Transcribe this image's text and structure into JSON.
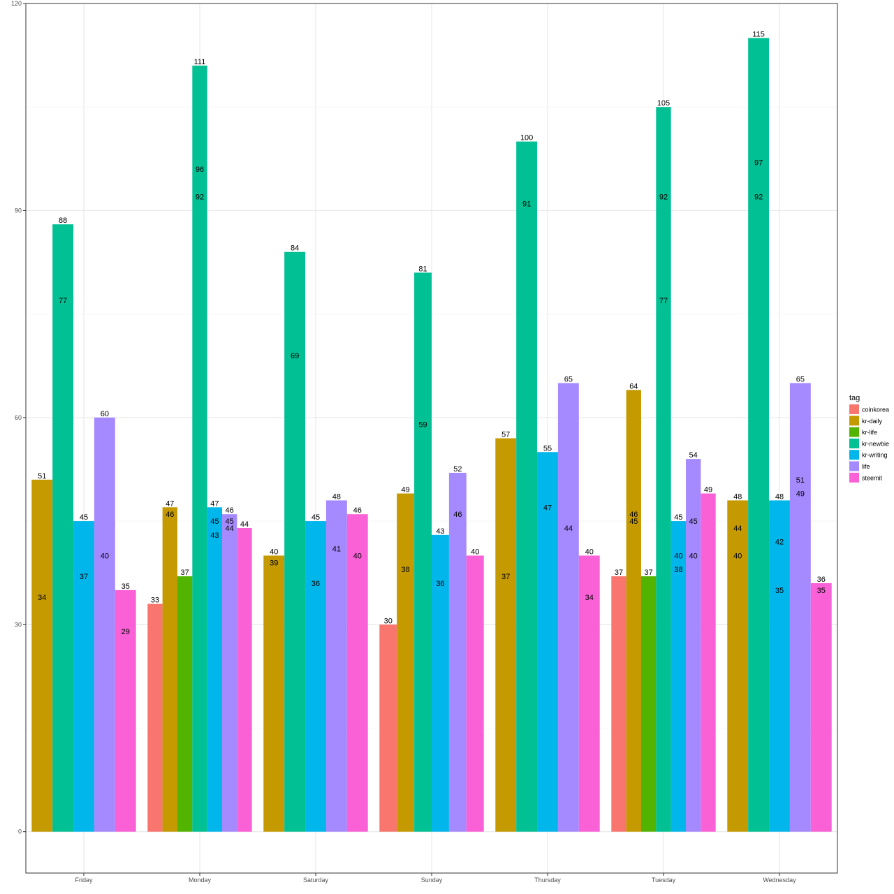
{
  "chart_data": {
    "type": "bar",
    "title": "",
    "xlabel": "",
    "ylabel": "",
    "ylim": [
      -6,
      120
    ],
    "y_ticks": [
      0,
      30,
      60,
      90,
      120
    ],
    "grid": true,
    "legend": {
      "title": "tag",
      "placement": "right",
      "entries": [
        "coinkorea",
        "kr-daily",
        "kr-life",
        "kr-newbie",
        "kr-writing",
        "life",
        "steemit"
      ]
    },
    "colors": {
      "coinkorea": "#F8766D",
      "kr-daily": "#C49A00",
      "kr-life": "#53B400",
      "kr-newbie": "#00C094",
      "kr-writing": "#00B6EB",
      "life": "#A58AFF",
      "steemit": "#FB61D7"
    },
    "categories": [
      "Friday",
      "Monday",
      "Saturday",
      "Sunday",
      "Thursday",
      "Tuesday",
      "Wednesday"
    ],
    "groups": [
      {
        "day": "Friday",
        "bars": [
          {
            "tag": "kr-daily",
            "value": 51,
            "inner": [
              "34"
            ]
          },
          {
            "tag": "kr-newbie",
            "value": 88,
            "inner": [
              "77"
            ]
          },
          {
            "tag": "kr-writing",
            "value": 45,
            "inner": [
              "37"
            ]
          },
          {
            "tag": "life",
            "value": 60,
            "inner": [
              "40"
            ]
          },
          {
            "tag": "steemit",
            "value": 35,
            "inner": [
              "29"
            ]
          }
        ]
      },
      {
        "day": "Monday",
        "bars": [
          {
            "tag": "coinkorea",
            "value": 33,
            "inner": []
          },
          {
            "tag": "kr-daily",
            "value": 47,
            "inner": [
              "46"
            ]
          },
          {
            "tag": "kr-life",
            "value": 37,
            "inner": []
          },
          {
            "tag": "kr-newbie",
            "value": 111,
            "inner": [
              "96",
              "92"
            ]
          },
          {
            "tag": "kr-writing",
            "value": 47,
            "inner": [
              "45",
              "43"
            ]
          },
          {
            "tag": "life",
            "value": 46,
            "inner": [
              "45",
              "44"
            ]
          },
          {
            "tag": "steemit",
            "value": 44,
            "inner": []
          }
        ]
      },
      {
        "day": "Saturday",
        "bars": [
          {
            "tag": "kr-daily",
            "value": 40,
            "inner": [
              "39"
            ]
          },
          {
            "tag": "kr-newbie",
            "value": 84,
            "inner": [
              "69"
            ]
          },
          {
            "tag": "kr-writing",
            "value": 45,
            "inner": [
              "36"
            ]
          },
          {
            "tag": "life",
            "value": 48,
            "inner": [
              "41"
            ]
          },
          {
            "tag": "steemit",
            "value": 46,
            "inner": [
              "40"
            ]
          }
        ]
      },
      {
        "day": "Sunday",
        "bars": [
          {
            "tag": "coinkorea",
            "value": 30,
            "inner": []
          },
          {
            "tag": "kr-daily",
            "value": 49,
            "inner": [
              "38"
            ]
          },
          {
            "tag": "kr-newbie",
            "value": 81,
            "inner": [
              "59"
            ]
          },
          {
            "tag": "kr-writing",
            "value": 43,
            "inner": [
              "36"
            ]
          },
          {
            "tag": "life",
            "value": 52,
            "inner": [
              "46"
            ]
          },
          {
            "tag": "steemit",
            "value": 40,
            "inner": []
          }
        ]
      },
      {
        "day": "Thursday",
        "bars": [
          {
            "tag": "kr-daily",
            "value": 57,
            "inner": [
              "37"
            ]
          },
          {
            "tag": "kr-newbie",
            "value": 100,
            "inner": [
              "91"
            ]
          },
          {
            "tag": "kr-writing",
            "value": 55,
            "inner": [
              "47"
            ]
          },
          {
            "tag": "life",
            "value": 65,
            "inner": [
              "44"
            ]
          },
          {
            "tag": "steemit",
            "value": 40,
            "inner": [
              "34"
            ]
          }
        ]
      },
      {
        "day": "Tuesday",
        "bars": [
          {
            "tag": "coinkorea",
            "value": 37,
            "inner": []
          },
          {
            "tag": "kr-daily",
            "value": 64,
            "inner": [
              "46",
              "45"
            ]
          },
          {
            "tag": "kr-life",
            "value": 37,
            "inner": []
          },
          {
            "tag": "kr-newbie",
            "value": 105,
            "inner": [
              "92",
              "77"
            ]
          },
          {
            "tag": "kr-writing",
            "value": 45,
            "inner": [
              "40",
              "38"
            ]
          },
          {
            "tag": "life",
            "value": 54,
            "inner": [
              "45",
              "40"
            ]
          },
          {
            "tag": "steemit",
            "value": 49,
            "inner": []
          }
        ]
      },
      {
        "day": "Wednesday",
        "bars": [
          {
            "tag": "kr-daily",
            "value": 48,
            "inner": [
              "44",
              "40"
            ]
          },
          {
            "tag": "kr-newbie",
            "value": 115,
            "inner": [
              "97",
              "92"
            ]
          },
          {
            "tag": "kr-writing",
            "value": 48,
            "inner": [
              "42",
              "35"
            ]
          },
          {
            "tag": "life",
            "value": 65,
            "inner": [
              "51",
              "49"
            ]
          },
          {
            "tag": "steemit",
            "value": 36,
            "inner": [
              "35"
            ]
          }
        ]
      }
    ]
  }
}
